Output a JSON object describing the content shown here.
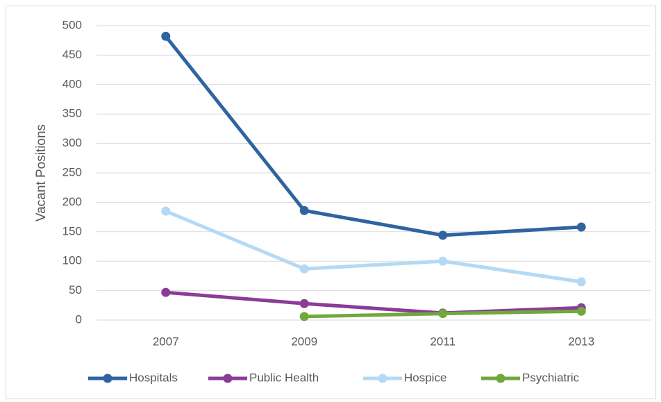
{
  "chart_data": {
    "type": "line",
    "y_label": "Vacant Positions",
    "categories": [
      "2007",
      "2009",
      "2011",
      "2013"
    ],
    "series": [
      {
        "name": "Hospitals",
        "color": "#2e64a0",
        "values": [
          482,
          186,
          144,
          158
        ]
      },
      {
        "name": "Public Health",
        "color": "#8a3c97",
        "values": [
          47,
          28,
          12,
          21
        ]
      },
      {
        "name": "Hospice",
        "color": "#b4d9f5",
        "values": [
          185,
          87,
          100,
          65
        ]
      },
      {
        "name": "Psychiatric",
        "color": "#70a83c",
        "values": [
          null,
          6,
          11,
          15
        ]
      }
    ],
    "ylim": [
      0,
      500
    ],
    "yticks": [
      0,
      50,
      100,
      150,
      200,
      250,
      300,
      350,
      400,
      450,
      500
    ],
    "grid": true,
    "legend": "bottom"
  }
}
